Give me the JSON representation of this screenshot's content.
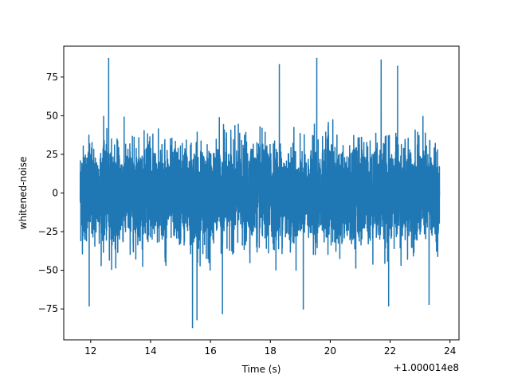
{
  "chart_data": {
    "type": "line",
    "title": "",
    "xlabel": "Time (s)",
    "ylabel": "whitened-noise",
    "x_offset_label": "+1.000014e8",
    "xlim": [
      11.1,
      24.3
    ],
    "ylim": [
      -95,
      95
    ],
    "x_ticks": [
      12,
      14,
      16,
      18,
      20,
      22,
      24
    ],
    "y_ticks": [
      -75,
      -50,
      -25,
      0,
      25,
      50,
      75
    ],
    "x_tick_labels": [
      "12",
      "14",
      "16",
      "18",
      "20",
      "22",
      "24"
    ],
    "y_tick_labels": [
      "−75",
      "−50",
      "−25",
      "0",
      "25",
      "50",
      "75"
    ],
    "grid": false,
    "legend": "none",
    "series": [
      {
        "color": "#1f77b4",
        "x_range": [
          11.65,
          23.65
        ],
        "typical_amplitude": 15,
        "envelope": [
          -50,
          50
        ],
        "peaks": [
          {
            "x": 12.6,
            "y": 87
          },
          {
            "x": 18.3,
            "y": 83
          },
          {
            "x": 19.55,
            "y": 87
          },
          {
            "x": 21.7,
            "y": 86
          },
          {
            "x": 22.25,
            "y": 82
          },
          {
            "x": 11.95,
            "y": -73
          },
          {
            "x": 15.4,
            "y": -87
          },
          {
            "x": 15.55,
            "y": -82
          },
          {
            "x": 16.4,
            "y": -78
          },
          {
            "x": 19.1,
            "y": -75
          },
          {
            "x": 21.95,
            "y": -73
          },
          {
            "x": 23.3,
            "y": -72
          }
        ]
      }
    ]
  }
}
